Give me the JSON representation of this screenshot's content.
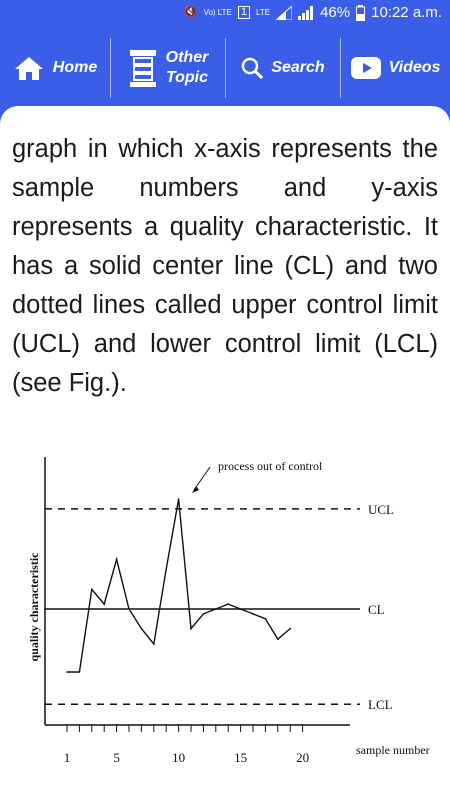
{
  "status_bar": {
    "battery": "46%",
    "time": "10:22 a.m.",
    "icons": [
      "mute-icon",
      "volte-icon",
      "sim-icon",
      "lte-icon",
      "signal-icon",
      "battery-icon"
    ]
  },
  "nav": {
    "home": "Home",
    "other_topic_line1": "Other",
    "other_topic_line2": "Topic",
    "search": "Search",
    "videos": "Videos"
  },
  "content": {
    "paragraph": "graph in which x-axis represents the sample numbers and y-axis represents a quality characteristic. It has a solid center line (CL) and two dotted lines called upper control limit (UCL) and lower control limit (LCL) (see Fig.)."
  },
  "chart_data": {
    "type": "line",
    "ylabel": "quality characteristic",
    "xlabel": "sample number",
    "x_ticks": [
      "1",
      "5",
      "10",
      "15",
      "20"
    ],
    "lines": {
      "ucl": "UCL",
      "cl": "CL",
      "lcl": "LCL"
    },
    "annotation": "process out of control",
    "series": [
      {
        "x": [
          1,
          2,
          3,
          4,
          5,
          6,
          7,
          8,
          9,
          10,
          11,
          12,
          13,
          14,
          15,
          16,
          17,
          18,
          19,
          20
        ],
        "y": [
          -0.9,
          -0.9,
          0.28,
          0.07,
          0.71,
          0.0,
          -0.28,
          -0.5,
          0.57,
          1.57,
          -0.28,
          -0.07,
          0.0,
          0.07,
          0.0,
          -0.07,
          -0.14,
          -0.43,
          -0.28,
          null
        ]
      }
    ]
  }
}
